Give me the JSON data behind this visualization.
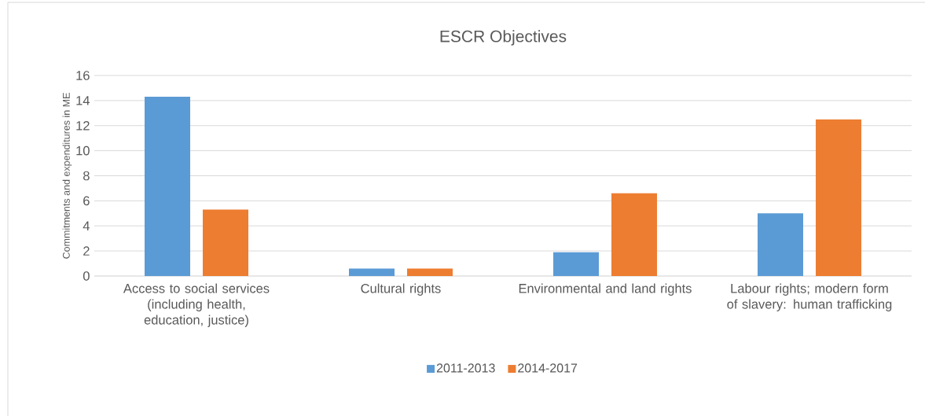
{
  "chart_data": {
    "type": "bar",
    "title": "ESCR Objectives",
    "ylabel": "Commitments and expenditures in ME",
    "categories": [
      "Access to social services (including health, education, justice)",
      "Cultural rights",
      "Environmental and land rights",
      "Labour rights; modern form of slavery: human trafficking"
    ],
    "series": [
      {
        "name": "2011-2013",
        "color": "#5b9bd5",
        "values": [
          14.3,
          0.6,
          1.9,
          5.0
        ]
      },
      {
        "name": "2014-2017",
        "color": "#ed7d31",
        "values": [
          5.3,
          0.6,
          6.6,
          12.5
        ]
      }
    ],
    "ylim": [
      0,
      16
    ],
    "yticks": [
      0,
      2,
      4,
      6,
      8,
      10,
      12,
      14,
      16
    ],
    "grid": "y",
    "legend": "bottom"
  }
}
